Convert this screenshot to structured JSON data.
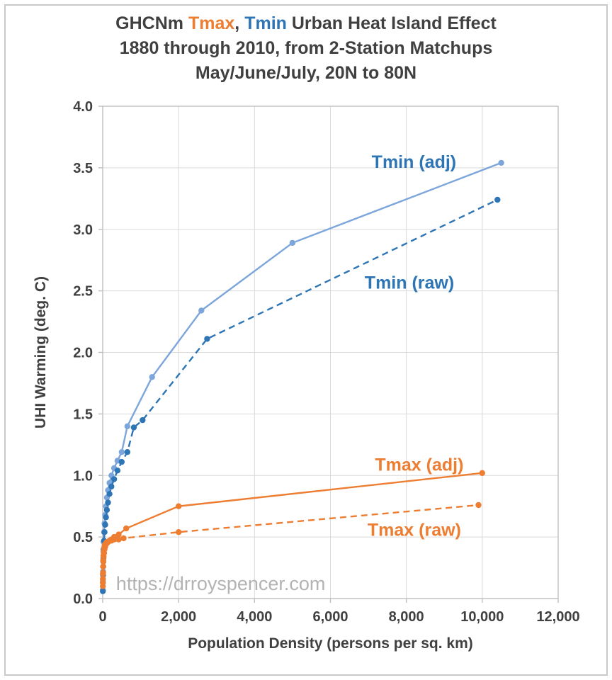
{
  "title": {
    "line1_parts": [
      {
        "text": "GHCNm ",
        "color": "#404040"
      },
      {
        "text": "Tmax",
        "color": "#ED7D31"
      },
      {
        "text": ", ",
        "color": "#404040"
      },
      {
        "text": "Tmin",
        "color": "#2E75B6"
      },
      {
        "text": " Urban Heat Island Effect",
        "color": "#404040"
      }
    ],
    "line2": "1880 through 2010, from 2-Station Matchups",
    "line3": "May/June/July, 20N to 80N"
  },
  "chart_data": {
    "type": "line",
    "title": "GHCNm Tmax, Tmin Urban Heat Island Effect 1880 through 2010, from 2-Station Matchups May/June/July, 20N to 80N",
    "xlabel": "Population Density (persons per sq. km)",
    "ylabel": "UHI Warming (deg. C)",
    "xlim": [
      0,
      12000
    ],
    "ylim": [
      0,
      4
    ],
    "grid": true,
    "legend_position": "inline-labels",
    "colors": {
      "tmin_adj": "#7CA6DB",
      "tmin_raw": "#2E75B6",
      "tmax": "#ED7D31",
      "axis_text": "#404040",
      "grid": "#D9D9D9",
      "border": "#BFBFBF",
      "watermark": "#B3B3B3"
    },
    "x_ticks": [
      {
        "v": 0,
        "label": "0"
      },
      {
        "v": 2000,
        "label": "2,000"
      },
      {
        "v": 4000,
        "label": "4,000"
      },
      {
        "v": 6000,
        "label": "6,000"
      },
      {
        "v": 8000,
        "label": "8,000"
      },
      {
        "v": 10000,
        "label": "10,000"
      },
      {
        "v": 12000,
        "label": "12,000"
      }
    ],
    "y_ticks": [
      {
        "v": 0.0,
        "label": "0.0"
      },
      {
        "v": 0.5,
        "label": "0.5"
      },
      {
        "v": 1.0,
        "label": "1.0"
      },
      {
        "v": 1.5,
        "label": "1.5"
      },
      {
        "v": 2.0,
        "label": "2.0"
      },
      {
        "v": 2.5,
        "label": "2.5"
      },
      {
        "v": 3.0,
        "label": "3.0"
      },
      {
        "v": 3.5,
        "label": "3.5"
      },
      {
        "v": 4.0,
        "label": "4.0"
      }
    ],
    "series": [
      {
        "name": "Tmin (adj)",
        "line": "solid",
        "color": "#7CA6DB",
        "points": [
          [
            3,
            0.07
          ],
          [
            6,
            0.15
          ],
          [
            9,
            0.22
          ],
          [
            13,
            0.3
          ],
          [
            18,
            0.38
          ],
          [
            25,
            0.46
          ],
          [
            35,
            0.54
          ],
          [
            48,
            0.61
          ],
          [
            65,
            0.68
          ],
          [
            85,
            0.75
          ],
          [
            110,
            0.82
          ],
          [
            140,
            0.88
          ],
          [
            180,
            0.94
          ],
          [
            230,
            1.0
          ],
          [
            300,
            1.06
          ],
          [
            390,
            1.12
          ],
          [
            500,
            1.19
          ],
          [
            650,
            1.4
          ],
          [
            1300,
            1.8
          ],
          [
            2600,
            2.34
          ],
          [
            5000,
            2.89
          ],
          [
            10500,
            3.54
          ]
        ]
      },
      {
        "name": "Tmin (raw)",
        "line": "dashed",
        "color": "#2E75B6",
        "points": [
          [
            3,
            0.06
          ],
          [
            6,
            0.13
          ],
          [
            9,
            0.19
          ],
          [
            13,
            0.26
          ],
          [
            18,
            0.33
          ],
          [
            25,
            0.4
          ],
          [
            35,
            0.47
          ],
          [
            48,
            0.54
          ],
          [
            65,
            0.6
          ],
          [
            85,
            0.66
          ],
          [
            110,
            0.72
          ],
          [
            140,
            0.78
          ],
          [
            180,
            0.85
          ],
          [
            230,
            0.91
          ],
          [
            300,
            0.97
          ],
          [
            390,
            1.04
          ],
          [
            500,
            1.11
          ],
          [
            650,
            1.19
          ],
          [
            820,
            1.39
          ],
          [
            1050,
            1.45
          ],
          [
            2750,
            2.11
          ],
          [
            10400,
            3.24
          ]
        ]
      },
      {
        "name": "Tmax (adj)",
        "line": "solid",
        "color": "#ED7D31",
        "points": [
          [
            3,
            0.1
          ],
          [
            6,
            0.16
          ],
          [
            9,
            0.21
          ],
          [
            13,
            0.26
          ],
          [
            18,
            0.3
          ],
          [
            25,
            0.34
          ],
          [
            35,
            0.37
          ],
          [
            48,
            0.4
          ],
          [
            65,
            0.42
          ],
          [
            85,
            0.44
          ],
          [
            110,
            0.45
          ],
          [
            140,
            0.46
          ],
          [
            180,
            0.47
          ],
          [
            230,
            0.48
          ],
          [
            300,
            0.5
          ],
          [
            420,
            0.52
          ],
          [
            620,
            0.57
          ],
          [
            2000,
            0.75
          ],
          [
            10000,
            1.02
          ]
        ]
      },
      {
        "name": "Tmax (raw)",
        "line": "dashed",
        "color": "#ED7D31",
        "points": [
          [
            3,
            0.13
          ],
          [
            6,
            0.2
          ],
          [
            9,
            0.26
          ],
          [
            13,
            0.31
          ],
          [
            18,
            0.35
          ],
          [
            25,
            0.38
          ],
          [
            35,
            0.41
          ],
          [
            48,
            0.43
          ],
          [
            65,
            0.44
          ],
          [
            85,
            0.45
          ],
          [
            110,
            0.46
          ],
          [
            140,
            0.46
          ],
          [
            180,
            0.47
          ],
          [
            230,
            0.47
          ],
          [
            300,
            0.48
          ],
          [
            420,
            0.48
          ],
          [
            550,
            0.49
          ],
          [
            2000,
            0.54
          ],
          [
            9900,
            0.76
          ]
        ]
      }
    ],
    "annotations": [
      {
        "text": "Tmin (adj)",
        "x": 8200,
        "y": 3.55,
        "color": "#2E75B6",
        "anchor": "middle",
        "size": 25,
        "weight": "bold"
      },
      {
        "text": "Tmin (raw)",
        "x": 8080,
        "y": 2.57,
        "color": "#2E75B6",
        "anchor": "middle",
        "size": 25,
        "weight": "bold"
      },
      {
        "text": "Tmax (adj)",
        "x": 8340,
        "y": 1.09,
        "color": "#ED7D31",
        "anchor": "middle",
        "size": 25,
        "weight": "bold"
      },
      {
        "text": "Tmax (raw)",
        "x": 8210,
        "y": 0.56,
        "color": "#ED7D31",
        "anchor": "middle",
        "size": 25,
        "weight": "bold"
      },
      {
        "text": "https://drroyspencer.com",
        "x": 350,
        "y": 0.12,
        "color": "#B3B3B3",
        "anchor": "start",
        "size": 27,
        "weight": "normal"
      }
    ]
  }
}
